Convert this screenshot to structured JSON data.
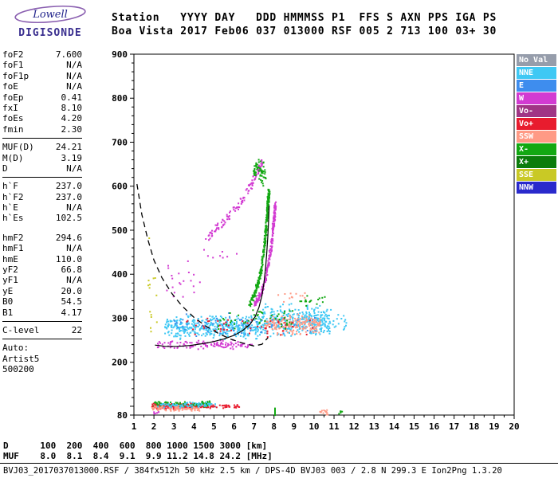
{
  "logo": {
    "name": "Lowell",
    "product": "DIGISONDE"
  },
  "header": {
    "line1": "Station   YYYY DAY   DDD HMMMSS P1  FFS S AXN PPS IGA PS",
    "line2": "Boa Vista 2017 Feb06 037 013000 RSF 005 2 713 100 03+ 30"
  },
  "params": {
    "groups": [
      {
        "rule_after": true,
        "rows": [
          {
            "label": "foF2",
            "value": "7.600"
          },
          {
            "label": "foF1",
            "value": "N/A"
          },
          {
            "label": "foF1p",
            "value": "N/A"
          },
          {
            "label": "foE",
            "value": "N/A"
          },
          {
            "label": "foEp",
            "value": "0.41"
          },
          {
            "label": "fxI",
            "value": "8.10"
          },
          {
            "label": "foEs",
            "value": "4.20"
          },
          {
            "label": "fmin",
            "value": "2.30"
          }
        ]
      },
      {
        "rule_after": true,
        "rows": [
          {
            "label": "MUF(D)",
            "value": "24.21"
          },
          {
            "label": "M(D)",
            "value": "3.19"
          },
          {
            "label": "D",
            "value": "N/A"
          }
        ]
      },
      {
        "rule_after": false,
        "rows": [
          {
            "label": "h`F",
            "value": "237.0"
          },
          {
            "label": "h`F2",
            "value": "237.0"
          },
          {
            "label": "h`E",
            "value": "N/A"
          },
          {
            "label": "h`Es",
            "value": "102.5"
          }
        ]
      },
      {
        "gap_before": true,
        "rule_after": true,
        "rows": [
          {
            "label": "hmF2",
            "value": "294.6"
          },
          {
            "label": "hmF1",
            "value": "N/A"
          },
          {
            "label": "hmE",
            "value": "110.0"
          },
          {
            "label": "yF2",
            "value": "66.8"
          },
          {
            "label": "yF1",
            "value": "N/A"
          },
          {
            "label": "yE",
            "value": "20.0"
          },
          {
            "label": "B0",
            "value": "54.5"
          },
          {
            "label": "B1",
            "value": "4.17"
          }
        ]
      },
      {
        "rule_after": true,
        "rows": [
          {
            "label": "C-level",
            "value": "22"
          }
        ]
      },
      {
        "rule_after": false,
        "rows": [
          {
            "label": "Auto:",
            "value": ""
          },
          {
            "label": "Artist5",
            "value": ""
          },
          {
            "label": "500200",
            "value": ""
          }
        ]
      }
    ]
  },
  "legend": {
    "entries": [
      {
        "label": "No Val",
        "color_key": "NoVal"
      },
      {
        "label": "NNE",
        "color_key": "NNE"
      },
      {
        "label": "E",
        "color_key": "E"
      },
      {
        "label": "W",
        "color_key": "W"
      },
      {
        "label": "Vo-",
        "color_key": "Vo-"
      },
      {
        "label": "Vo+",
        "color_key": "Vo+"
      },
      {
        "label": "SSW",
        "color_key": "SSW"
      },
      {
        "label": "X-",
        "color_key": "X-"
      },
      {
        "label": "X+",
        "color_key": "X+"
      },
      {
        "label": "SSE",
        "color_key": "SSE"
      },
      {
        "label": "NNW",
        "color_key": "NNW"
      }
    ]
  },
  "bottom": {
    "d_line": "D      100  200  400  600  800 1000 1500 3000 [km]",
    "muf_line": "MUF    8.0  8.1  8.4  9.1  9.9 11.2 14.8 24.2 [MHz]",
    "status": "BVJ03_2017037013000.RSF / 384fx512h 50 kHz 2.5 km / DPS-4D BVJ03 003 / 2.8 N 299.3 E Ion2Png 1.3.20"
  },
  "chart_data": {
    "type": "scatter",
    "title": "",
    "xlabel": "",
    "ylabel": "",
    "x_unit": "MHz",
    "y_unit": "km",
    "xlim": [
      1,
      20
    ],
    "ylim": [
      80,
      900
    ],
    "x_ticks": [
      1,
      2,
      3,
      4,
      5,
      6,
      7,
      8,
      9,
      10,
      11,
      12,
      13,
      14,
      15,
      16,
      17,
      18,
      19,
      20
    ],
    "y_ticks": [
      900,
      800,
      700,
      600,
      500,
      400,
      300,
      200,
      80
    ],
    "grid": false,
    "legend_position": "right",
    "colors": {
      "NoVal": "#969DAB",
      "NNE": "#3FC8F4",
      "E": "#3E8DEE",
      "W": "#D23BD2",
      "Vo-": "#A03585",
      "Vo+": "#E81C2E",
      "SSW": "#FF9A85",
      "X-": "#12A812",
      "X+": "#0B7C0B",
      "SSE": "#C9C925",
      "NNW": "#2A2ACC"
    },
    "clusters": [
      {
        "name": "f-region-cloud-left",
        "color": "NNE",
        "shape": "band",
        "x": [
          2.55,
          7.4
        ],
        "h": [
          250,
          308
        ],
        "n": 420
      },
      {
        "name": "f-region-cloud-right",
        "color": "NNE",
        "shape": "band",
        "x": [
          7.4,
          10.85
        ],
        "h": [
          256,
          334
        ],
        "n": 340
      },
      {
        "name": "f-region-cloud-blue",
        "color": "E",
        "shape": "band",
        "x": [
          3.0,
          10.2
        ],
        "h": [
          254,
          318
        ],
        "n": 70
      },
      {
        "name": "f-region-cloud-salmon",
        "color": "SSW",
        "shape": "band",
        "x": [
          7.55,
          10.35
        ],
        "h": [
          260,
          312
        ],
        "n": 170
      },
      {
        "name": "f-region-cloud-red",
        "color": "Vo+",
        "shape": "band",
        "x": [
          3.6,
          10.0
        ],
        "h": [
          256,
          306
        ],
        "n": 55
      },
      {
        "name": "f-region-cloud-green",
        "color": "X-",
        "shape": "band",
        "x": [
          5.2,
          9.0
        ],
        "h": [
          265,
          330
        ],
        "n": 50
      },
      {
        "name": "f-base-magenta",
        "color": "W",
        "shape": "band",
        "x": [
          2.1,
          6.9
        ],
        "h": [
          228,
          252
        ],
        "n": 120
      },
      {
        "name": "f-asymptote-green",
        "color": "X-",
        "shape": "curve",
        "sigma": 7,
        "n": 280,
        "points": [
          [
            6.75,
            325
          ],
          [
            7.0,
            350
          ],
          [
            7.2,
            378
          ],
          [
            7.35,
            408
          ],
          [
            7.45,
            440
          ],
          [
            7.55,
            475
          ],
          [
            7.62,
            510
          ],
          [
            7.68,
            545
          ],
          [
            7.72,
            570
          ],
          [
            7.75,
            588
          ]
        ]
      },
      {
        "name": "f-asymptote-magenta",
        "color": "W",
        "shape": "curve",
        "sigma": 7,
        "n": 220,
        "points": [
          [
            7.05,
            330
          ],
          [
            7.35,
            358
          ],
          [
            7.6,
            392
          ],
          [
            7.75,
            428
          ],
          [
            7.87,
            465
          ],
          [
            7.95,
            500
          ],
          [
            8.02,
            530
          ],
          [
            8.07,
            560
          ]
        ]
      },
      {
        "name": "second-order-magenta",
        "color": "W",
        "shape": "curve",
        "sigma": 9,
        "n": 120,
        "points": [
          [
            4.55,
            478
          ],
          [
            5.0,
            498
          ],
          [
            5.5,
            520
          ],
          [
            6.0,
            545
          ],
          [
            6.45,
            572
          ],
          [
            6.85,
            602
          ],
          [
            7.15,
            628
          ],
          [
            7.4,
            655
          ]
        ]
      },
      {
        "name": "second-order-green",
        "color": "X-",
        "shape": "band",
        "x": [
          6.95,
          7.6
        ],
        "h": [
          598,
          668
        ],
        "n": 55
      },
      {
        "name": "es-layer-red",
        "color": "Vo+",
        "shape": "band",
        "x": [
          1.9,
          4.7
        ],
        "h": [
          92,
          108
        ],
        "n": 260
      },
      {
        "name": "es-layer-green",
        "color": "X-",
        "shape": "band",
        "x": [
          2.0,
          4.8
        ],
        "h": [
          96,
          113
        ],
        "n": 90
      },
      {
        "name": "es-layer-salmon",
        "color": "SSW",
        "shape": "band",
        "x": [
          1.9,
          4.3
        ],
        "h": [
          88,
          103
        ],
        "n": 90
      },
      {
        "name": "es-layer-cyan",
        "color": "NNE",
        "shape": "band",
        "x": [
          2.2,
          5.2
        ],
        "h": [
          96,
          110
        ],
        "n": 70
      },
      {
        "name": "es-layer-tail",
        "color": "Vo+",
        "shape": "band",
        "x": [
          4.7,
          6.3
        ],
        "h": [
          94,
          104
        ],
        "n": 35
      },
      {
        "name": "left-sparse-yellow",
        "color": "SSE",
        "shape": "band",
        "x": [
          1.7,
          2.15
        ],
        "h": [
          250,
          500
        ],
        "n": 14
      },
      {
        "name": "mid-sparse-magenta",
        "color": "W",
        "shape": "band",
        "x": [
          2.6,
          4.3
        ],
        "h": [
          340,
          432
        ],
        "n": 20
      },
      {
        "name": "upper-mid-sparse-magenta",
        "color": "W",
        "shape": "band",
        "x": [
          4.3,
          6.4
        ],
        "h": [
          430,
          470
        ],
        "n": 8
      },
      {
        "name": "right-sparse-cyan",
        "color": "NNE",
        "shape": "band",
        "x": [
          10.9,
          11.65
        ],
        "h": [
          268,
          312
        ],
        "n": 16
      },
      {
        "name": "right-sparse-green",
        "color": "X-",
        "shape": "band",
        "x": [
          9.3,
          10.6
        ],
        "h": [
          325,
          352
        ],
        "n": 16
      },
      {
        "name": "right-sparse-salmon",
        "color": "SSW",
        "shape": "band",
        "x": [
          8.0,
          9.6
        ],
        "h": [
          335,
          360
        ],
        "n": 12
      },
      {
        "name": "bottom-right-orange",
        "color": "SSW",
        "shape": "band",
        "x": [
          10.25,
          10.7
        ],
        "h": [
          78,
          96
        ],
        "n": 14
      },
      {
        "name": "bottom-right-green",
        "color": "X-",
        "shape": "band",
        "x": [
          11.2,
          11.45
        ],
        "h": [
          80,
          94
        ],
        "n": 5
      },
      {
        "name": "bottom-left-pink",
        "color": "W",
        "shape": "band",
        "x": [
          1.95,
          2.25
        ],
        "h": [
          78,
          92
        ],
        "n": 6
      }
    ],
    "curves": [
      {
        "name": "muf-transmission-curve",
        "style": "dashed",
        "color": "#000000",
        "width": 1.3,
        "points": [
          [
            1.15,
            605
          ],
          [
            1.4,
            535
          ],
          [
            1.7,
            478
          ],
          [
            2.0,
            432
          ],
          [
            2.4,
            392
          ],
          [
            2.9,
            356
          ],
          [
            3.4,
            328
          ],
          [
            4.0,
            302
          ],
          [
            4.6,
            282
          ],
          [
            5.2,
            266
          ],
          [
            5.8,
            253
          ],
          [
            6.4,
            244
          ],
          [
            7.0,
            237
          ],
          [
            7.4,
            241
          ],
          [
            7.7,
            256
          ]
        ]
      },
      {
        "name": "artist-hf-trace",
        "style": "solid",
        "color": "#000000",
        "width": 1.2,
        "points": [
          [
            2.05,
            239
          ],
          [
            2.6,
            236
          ],
          [
            3.2,
            236
          ],
          [
            3.8,
            238
          ],
          [
            4.4,
            242
          ],
          [
            5.0,
            247
          ],
          [
            5.5,
            253
          ],
          [
            6.0,
            261
          ],
          [
            6.4,
            271
          ],
          [
            6.8,
            286
          ],
          [
            7.05,
            303
          ],
          [
            7.25,
            325
          ],
          [
            7.4,
            352
          ],
          [
            7.5,
            382
          ],
          [
            7.58,
            415
          ],
          [
            7.64,
            450
          ],
          [
            7.69,
            487
          ],
          [
            7.73,
            524
          ],
          [
            7.76,
            556
          ]
        ]
      }
    ],
    "markers": [
      {
        "name": "fxI-marker",
        "color": "X-",
        "x": 8.05,
        "h": [
          78,
          97
        ]
      }
    ]
  }
}
